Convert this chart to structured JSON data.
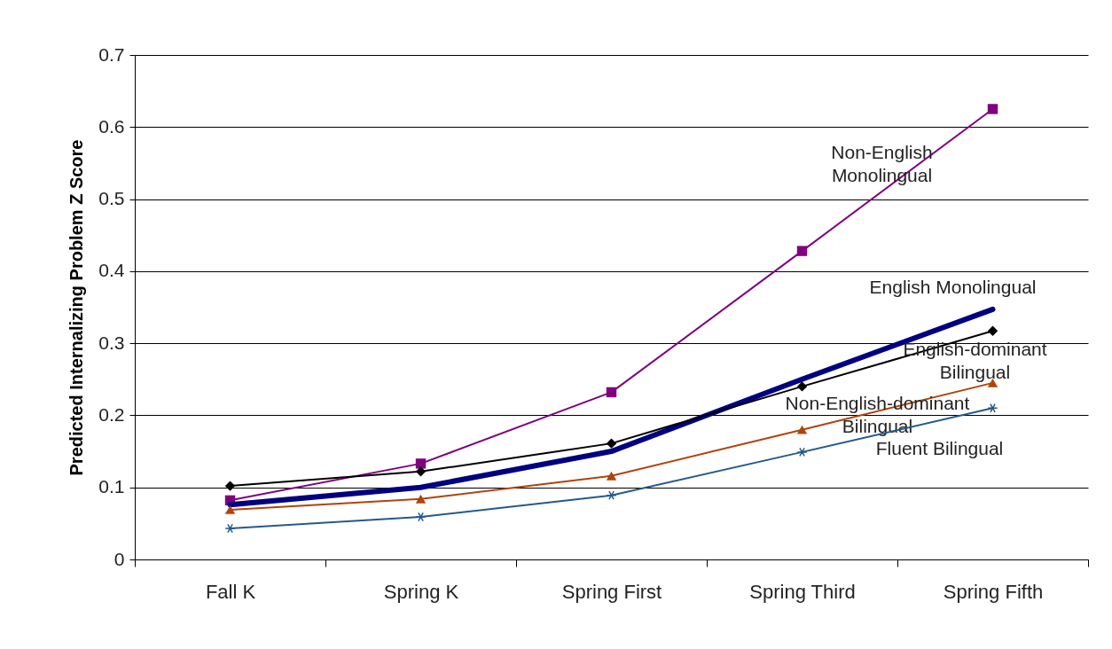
{
  "chart_data": {
    "type": "line",
    "ylabel": "Predicted Internalizing Problem Z Score",
    "categories": [
      "Fall K",
      "Spring K",
      "Spring First",
      "Spring Third",
      "Spring Fifth"
    ],
    "series": [
      {
        "name": "Non-English Monolingual",
        "color": "#800080",
        "marker": "square",
        "values": [
          0.082,
          0.133,
          0.232,
          0.428,
          0.625
        ]
      },
      {
        "name": "English Monolingual",
        "color": "#000080",
        "marker": "none",
        "values": [
          0.076,
          0.1,
          0.15,
          0.25,
          0.347
        ]
      },
      {
        "name": "English-dominant Bilingual",
        "color": "#000000",
        "marker": "diamond",
        "values": [
          0.102,
          0.122,
          0.161,
          0.24,
          0.317
        ]
      },
      {
        "name": "Non-English-dominant Bilingual",
        "color": "#b0440c",
        "marker": "triangle",
        "values": [
          0.069,
          0.084,
          0.116,
          0.18,
          0.245
        ]
      },
      {
        "name": "Fluent Bilingual",
        "color": "#245a8a",
        "marker": "cross",
        "values": [
          0.043,
          0.059,
          0.089,
          0.149,
          0.21
        ]
      }
    ],
    "ylim": [
      0,
      0.7
    ],
    "yticks": [
      0,
      0.1,
      0.2,
      0.3,
      0.4,
      0.5,
      0.6,
      0.7
    ],
    "grid": "y",
    "line_style": "solid"
  }
}
